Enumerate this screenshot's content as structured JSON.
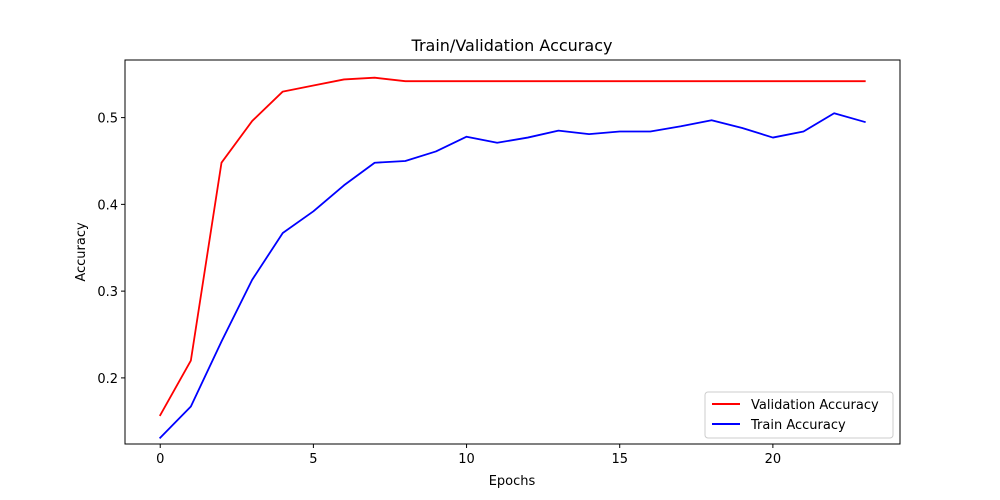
{
  "chart_data": {
    "type": "line",
    "title": "Train/Validation Accuracy",
    "xlabel": "Epochs",
    "ylabel": "Accuracy",
    "xlim": [
      -1.15,
      24.15
    ],
    "ylim": [
      0.1238,
      0.5664
    ],
    "xticks": [
      0,
      5,
      10,
      15,
      20
    ],
    "yticks": [
      0.2,
      0.3,
      0.4,
      0.5
    ],
    "ytick_labels": [
      "0.2",
      "0.3",
      "0.4",
      "0.5"
    ],
    "grid": false,
    "legend_position": "lower-right",
    "x": [
      0,
      1,
      2,
      3,
      4,
      5,
      6,
      7,
      8,
      9,
      10,
      11,
      12,
      13,
      14,
      15,
      16,
      17,
      18,
      19,
      20,
      21,
      22,
      23
    ],
    "series": [
      {
        "name": "Validation Accuracy",
        "color": "#ff0000",
        "values": [
          0.157,
          0.22,
          0.448,
          0.496,
          0.53,
          0.537,
          0.544,
          0.546,
          0.542,
          0.542,
          0.542,
          0.542,
          0.542,
          0.542,
          0.542,
          0.542,
          0.542,
          0.542,
          0.542,
          0.542,
          0.542,
          0.542,
          0.542,
          0.542
        ]
      },
      {
        "name": "Train Accuracy",
        "color": "#0000ff",
        "values": [
          0.131,
          0.167,
          0.242,
          0.313,
          0.367,
          0.392,
          0.422,
          0.448,
          0.45,
          0.461,
          0.478,
          0.471,
          0.477,
          0.485,
          0.481,
          0.484,
          0.484,
          0.49,
          0.497,
          0.488,
          0.477,
          0.484,
          0.505,
          0.495
        ]
      }
    ]
  }
}
